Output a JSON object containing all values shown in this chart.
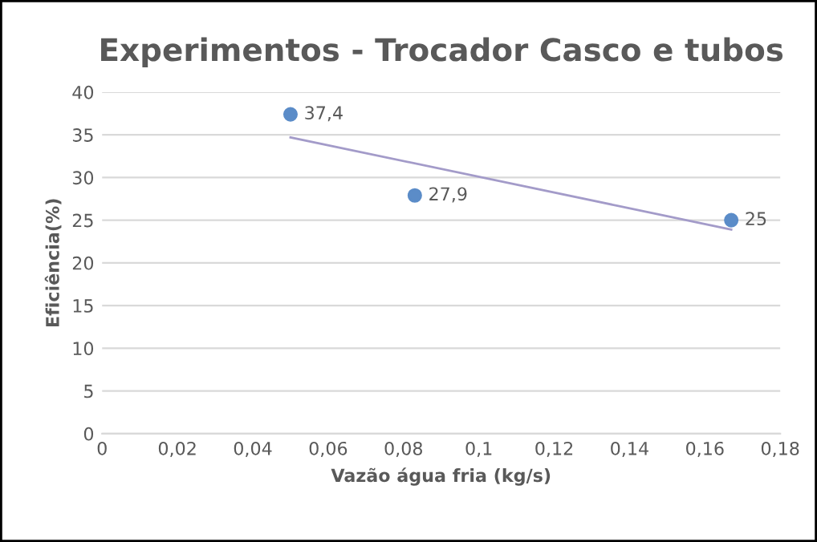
{
  "chart_data": {
    "type": "scatter",
    "title": "Experimentos - Trocador Casco e tubos",
    "xlabel": "Vazão água fria (kg/s)",
    "ylabel": "Eficiência(%)",
    "series": [
      {
        "marker": "circle",
        "color": "#5b8cc8",
        "x": [
          0.05,
          0.083,
          0.167
        ],
        "values": [
          37.4,
          27.9,
          25
        ],
        "value_labels": [
          "37,4",
          "27,9",
          "25"
        ]
      },
      {
        "type": "line",
        "color": "#a39bc9",
        "x": [
          0.05,
          0.167
        ],
        "values": [
          34.7,
          23.9
        ]
      }
    ],
    "xlim": [
      0,
      0.18
    ],
    "xticks": [
      0,
      {
        "value": 0.02,
        "label": "0,02"
      },
      {
        "value": 0.04,
        "label": "0,04"
      },
      {
        "value": 0.06,
        "label": "0,06"
      },
      {
        "value": 0.08,
        "label": "0,08"
      },
      {
        "value": 0.1,
        "label": "0,1"
      },
      {
        "value": 0.12,
        "label": "0,12"
      },
      {
        "value": 0.14,
        "label": "0,14"
      },
      {
        "value": 0.16,
        "label": "0,16"
      },
      {
        "value": 0.18,
        "label": "0,18"
      }
    ],
    "ylim": [
      0,
      40
    ],
    "yticks": [
      0,
      5,
      10,
      15,
      20,
      25,
      30,
      35,
      40
    ],
    "grid": "y",
    "legend": false
  }
}
